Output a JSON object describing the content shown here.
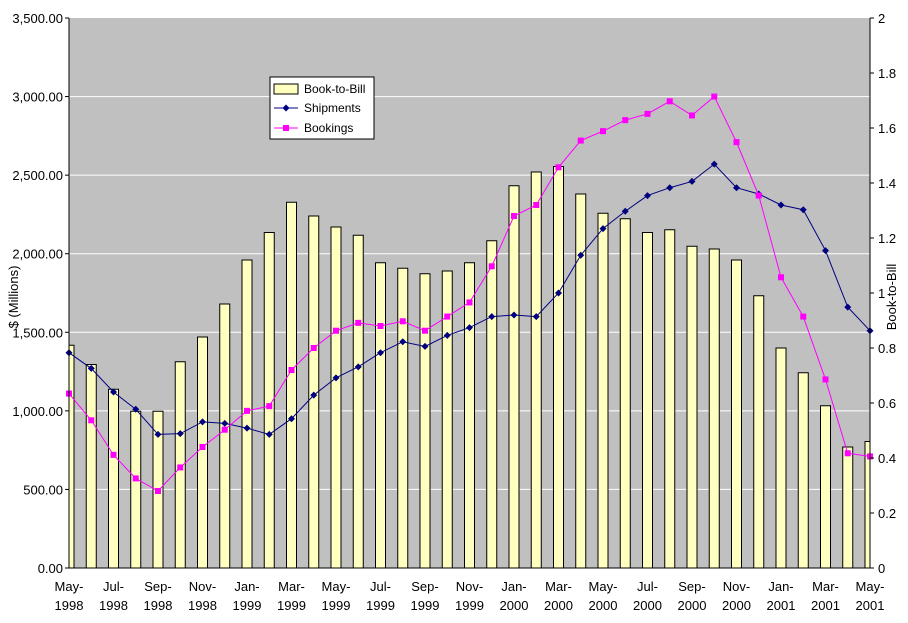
{
  "chart_data": {
    "type": "bar+line",
    "categories": [
      "May-1998",
      "Jun-1998",
      "Jul-1998",
      "Aug-1998",
      "Sep-1998",
      "Oct-1998",
      "Nov-1998",
      "Dec-1998",
      "Jan-1999",
      "Feb-1999",
      "Mar-1999",
      "Apr-1999",
      "May-1999",
      "Jun-1999",
      "Jul-1999",
      "Aug-1999",
      "Sep-1999",
      "Oct-1999",
      "Nov-1999",
      "Dec-1999",
      "Jan-2000",
      "Feb-2000",
      "Mar-2000",
      "Apr-2000",
      "May-2000",
      "Jun-2000",
      "Jul-2000",
      "Aug-2000",
      "Sep-2000",
      "Oct-2000",
      "Nov-2000",
      "Dec-2000",
      "Jan-2001",
      "Feb-2001",
      "Mar-2001",
      "Apr-2001",
      "May-2001"
    ],
    "x_tick_labels": [
      {
        "index": 0,
        "line1": "May-",
        "line2": "1998"
      },
      {
        "index": 2,
        "line1": "Jul-",
        "line2": "1998"
      },
      {
        "index": 4,
        "line1": "Sep-",
        "line2": "1998"
      },
      {
        "index": 6,
        "line1": "Nov-",
        "line2": "1998"
      },
      {
        "index": 8,
        "line1": "Jan-",
        "line2": "1999"
      },
      {
        "index": 10,
        "line1": "Mar-",
        "line2": "1999"
      },
      {
        "index": 12,
        "line1": "May-",
        "line2": "1999"
      },
      {
        "index": 14,
        "line1": "Jul-",
        "line2": "1999"
      },
      {
        "index": 16,
        "line1": "Sep-",
        "line2": "1999"
      },
      {
        "index": 18,
        "line1": "Nov-",
        "line2": "1999"
      },
      {
        "index": 20,
        "line1": "Jan-",
        "line2": "2000"
      },
      {
        "index": 22,
        "line1": "Mar-",
        "line2": "2000"
      },
      {
        "index": 24,
        "line1": "May-",
        "line2": "2000"
      },
      {
        "index": 26,
        "line1": "Jul-",
        "line2": "2000"
      },
      {
        "index": 28,
        "line1": "Sep-",
        "line2": "2000"
      },
      {
        "index": 30,
        "line1": "Nov-",
        "line2": "2000"
      },
      {
        "index": 32,
        "line1": "Jan-",
        "line2": "2001"
      },
      {
        "index": 34,
        "line1": "Mar-",
        "line2": "2001"
      },
      {
        "index": 36,
        "line1": "May-",
        "line2": "2001"
      }
    ],
    "ylabel_left": "$ (Millions)",
    "ylabel_right": "Book-to-Bill",
    "ylim_left": [
      0,
      3500
    ],
    "yticks_left": [
      "0.00",
      "500.00",
      "1,000.00",
      "1,500.00",
      "2,000.00",
      "2,500.00",
      "3,000.00",
      "3,500.00"
    ],
    "ylim_right": [
      0,
      2
    ],
    "yticks_right": [
      "0",
      "0.2",
      "0.4",
      "0.6",
      "0.8",
      "1",
      "1.2",
      "1.4",
      "1.6",
      "1.8",
      "2"
    ],
    "grid": "horizontal",
    "legend_position": "top-left",
    "series": [
      {
        "name": "Book-to-Bill",
        "kind": "bar",
        "axis": "right",
        "color": "#ffffc0",
        "values": [
          0.81,
          0.74,
          0.65,
          0.57,
          0.57,
          0.75,
          0.84,
          0.96,
          1.12,
          1.22,
          1.33,
          1.28,
          1.24,
          1.21,
          1.11,
          1.09,
          1.07,
          1.08,
          1.11,
          1.19,
          1.39,
          1.44,
          1.46,
          1.36,
          1.29,
          1.27,
          1.22,
          1.23,
          1.17,
          1.16,
          1.12,
          0.99,
          0.8,
          0.71,
          0.59,
          0.44,
          0.46
        ]
      },
      {
        "name": "Shipments",
        "kind": "line",
        "axis": "left",
        "color": "#000080",
        "marker": "diamond",
        "values": [
          1370,
          1270,
          1120,
          1010,
          850,
          855,
          930,
          920,
          890,
          850,
          950,
          1100,
          1210,
          1280,
          1370,
          1440,
          1410,
          1480,
          1530,
          1600,
          1610,
          1600,
          1750,
          1990,
          2160,
          2270,
          2370,
          2420,
          2460,
          2570,
          2420,
          2380,
          2310,
          2280,
          2020,
          1660,
          1510
        ]
      },
      {
        "name": "Bookings",
        "kind": "line",
        "axis": "left",
        "color": "#ff00ff",
        "marker": "square",
        "values": [
          1110,
          940,
          720,
          570,
          490,
          640,
          770,
          880,
          1000,
          1030,
          1260,
          1400,
          1510,
          1560,
          1540,
          1570,
          1510,
          1600,
          1690,
          1920,
          2240,
          2310,
          2550,
          2720,
          2780,
          2850,
          2890,
          2970,
          2880,
          3000,
          2710,
          2370,
          1850,
          1600,
          1200,
          730,
          710
        ]
      }
    ]
  }
}
